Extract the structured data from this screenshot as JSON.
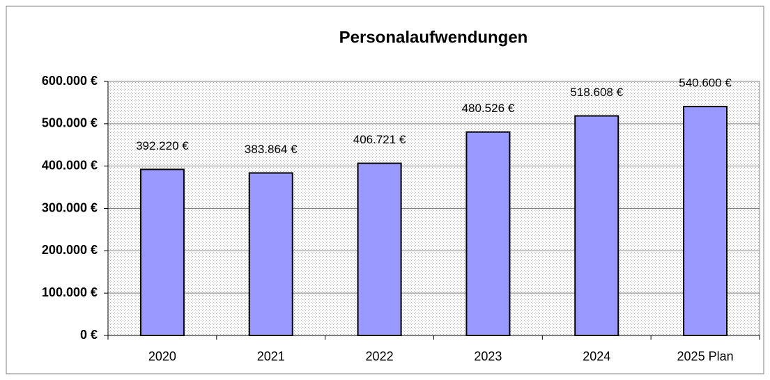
{
  "chart_data": {
    "type": "bar",
    "title": "Personalaufwendungen",
    "categories": [
      "2020",
      "2021",
      "2022",
      "2023",
      "2024",
      "2025 Plan"
    ],
    "values": [
      392220,
      383864,
      406721,
      480526,
      518608,
      540600
    ],
    "value_labels": [
      "392.220 €",
      "383.864 €",
      "406.721 €",
      "480.526 €",
      "518.608 €",
      "540.600 €"
    ],
    "color": "#9999ff",
    "ylim": [
      0,
      600000
    ],
    "yticks": [
      {
        "value": 0,
        "label": "0 €"
      },
      {
        "value": 100000,
        "label": "100.000 €"
      },
      {
        "value": 200000,
        "label": "200.000 €"
      },
      {
        "value": 300000,
        "label": "300.000 €"
      },
      {
        "value": 400000,
        "label": "400.000 €"
      },
      {
        "value": 500000,
        "label": "500.000 €"
      },
      {
        "value": 600000,
        "label": "600.000 €"
      }
    ],
    "grid": true
  }
}
